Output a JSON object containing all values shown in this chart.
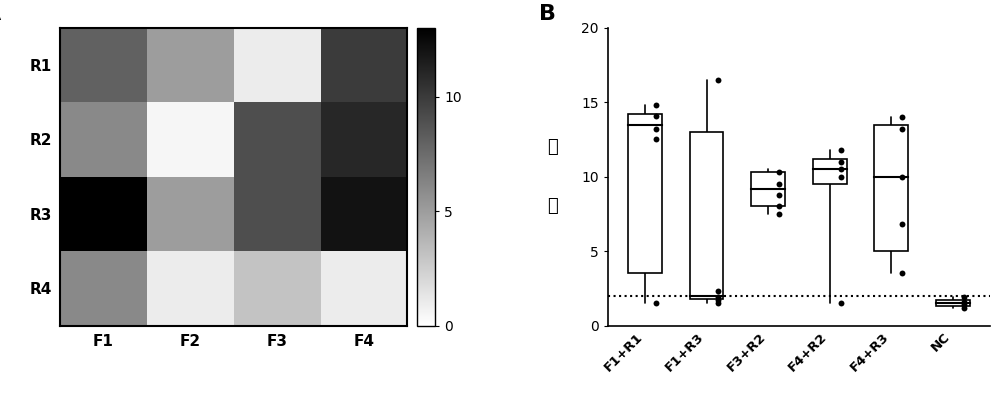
{
  "heatmap_data": [
    [
      8,
      5,
      1,
      10
    ],
    [
      6,
      0.5,
      9,
      11
    ],
    [
      13,
      5,
      9,
      12
    ],
    [
      6,
      1,
      3,
      1
    ]
  ],
  "heatmap_row_labels": [
    "R1",
    "R2",
    "R3",
    "R4"
  ],
  "heatmap_col_labels": [
    "F1",
    "F2",
    "F3",
    "F4"
  ],
  "colorbar_ticks": [
    0,
    5,
    10
  ],
  "colorbar_max": 13,
  "panel_a_label": "A",
  "panel_b_label": "B",
  "boxplot_ylabel_line1": "倍",
  "boxplot_ylabel_line2": "数",
  "boxplot_categories": [
    "F1+R1",
    "F1+R3",
    "F3+R2",
    "F4+R2",
    "F4+R3",
    "NC"
  ],
  "boxplot_data": {
    "F1+R1": {
      "whisker_low": 1.5,
      "q1": 3.5,
      "median": 13.5,
      "q3": 14.2,
      "whisker_high": 14.8,
      "points": [
        1.5,
        12.5,
        13.2,
        14.1,
        14.8
      ]
    },
    "F1+R3": {
      "whisker_low": 1.5,
      "q1": 1.8,
      "median": 2.0,
      "q3": 13.0,
      "whisker_high": 16.5,
      "points": [
        1.5,
        1.7,
        1.9,
        2.3,
        16.5
      ]
    },
    "F3+R2": {
      "whisker_low": 7.5,
      "q1": 8.0,
      "median": 9.2,
      "q3": 10.3,
      "whisker_high": 10.5,
      "points": [
        7.5,
        8.0,
        8.8,
        9.5,
        10.3
      ]
    },
    "F4+R2": {
      "whisker_low": 1.5,
      "q1": 9.5,
      "median": 10.5,
      "q3": 11.2,
      "whisker_high": 11.8,
      "points": [
        1.5,
        10.0,
        10.5,
        11.0,
        11.8
      ]
    },
    "F4+R3": {
      "whisker_low": 3.5,
      "q1": 5.0,
      "median": 10.0,
      "q3": 13.5,
      "whisker_high": 14.0,
      "points": [
        3.5,
        6.8,
        10.0,
        13.2,
        14.0
      ]
    },
    "NC": {
      "whisker_low": 1.2,
      "q1": 1.3,
      "median": 1.5,
      "q3": 1.7,
      "whisker_high": 1.9,
      "points": [
        1.2,
        1.4,
        1.5,
        1.6,
        1.9
      ]
    }
  },
  "dotted_line_y": 2.0,
  "ylim_boxplot": [
    0,
    20
  ],
  "yticks_boxplot": [
    0,
    5,
    10,
    15,
    20
  ]
}
